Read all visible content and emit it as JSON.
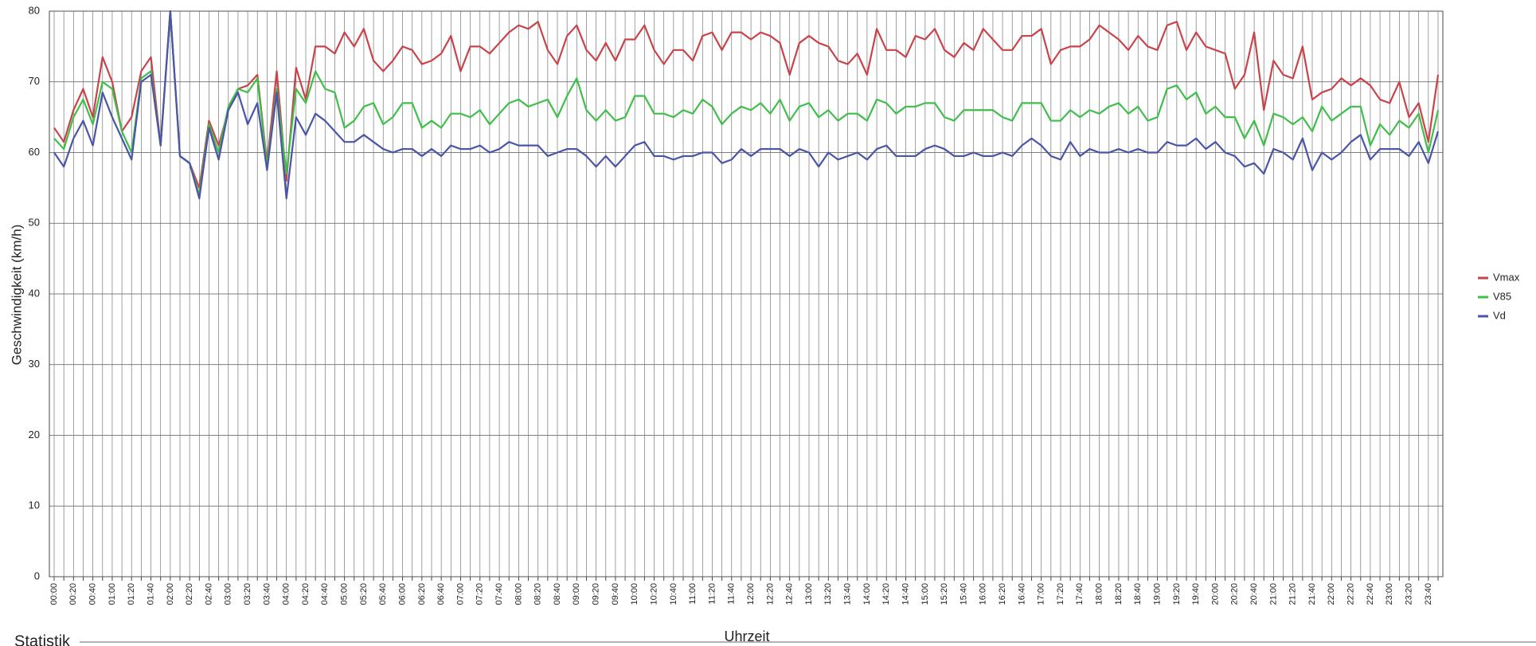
{
  "chart_data": {
    "type": "line",
    "y_label": "Geschwindigkeit (km/h)",
    "x_label": "Uhrzeit",
    "categories": [
      "00:00",
      null,
      "00:20",
      null,
      "00:40",
      null,
      "01:00",
      null,
      "01:20",
      null,
      "01:40",
      null,
      "02:00",
      null,
      "02:20",
      null,
      "02:40",
      null,
      "03:00",
      null,
      "03:20",
      null,
      "03:40",
      null,
      "04:00",
      null,
      "04:20",
      null,
      "04:40",
      null,
      "05:00",
      null,
      "05:20",
      null,
      "05:40",
      null,
      "06:00",
      null,
      "06:20",
      null,
      "06:40",
      null,
      "07:00",
      null,
      "07:20",
      null,
      "07:40",
      null,
      "08:00",
      null,
      "08:20",
      null,
      "08:40",
      null,
      "09:00",
      null,
      "09:20",
      null,
      "09:40",
      null,
      "10:00",
      null,
      "10:20",
      null,
      "10:40",
      null,
      "11:00",
      null,
      "11:20",
      null,
      "11:40",
      null,
      "12:00",
      null,
      "12:20",
      null,
      "12:40",
      null,
      "13:00",
      null,
      "13:20",
      null,
      "13:40",
      null,
      "14:00",
      null,
      "14:20",
      null,
      "14:40",
      null,
      "15:00",
      null,
      "15:20",
      null,
      "15:40",
      null,
      "16:00",
      null,
      "16:20",
      null,
      "16:40",
      null,
      "17:00",
      null,
      "17:20",
      null,
      "17:40",
      null,
      "18:00",
      null,
      "18:20",
      null,
      "18:40",
      null,
      "19:00",
      null,
      "19:20",
      null,
      "19:40",
      null,
      "20:00",
      null,
      "20:20",
      null,
      "20:40",
      null,
      "21:00",
      null,
      "21:20",
      null,
      "21:40",
      null,
      "22:00",
      null,
      "22:20",
      null,
      "22:40",
      null,
      "23:00",
      null,
      "23:20",
      null,
      "23:40",
      null
    ],
    "series": [
      {
        "name": "Vmax",
        "color": "#c8434a",
        "values": [
          63.5,
          61.5,
          66,
          69,
          65,
          73.5,
          70,
          63,
          65,
          71.5,
          73.5,
          61,
          80,
          59.5,
          58.5,
          55,
          64.5,
          61,
          66,
          69,
          69.5,
          71,
          58.5,
          71.5,
          56,
          72,
          67.5,
          75,
          75,
          74,
          77,
          75,
          77.5,
          73,
          71.5,
          73,
          75,
          74.5,
          72.5,
          73,
          74,
          76.5,
          71.5,
          75,
          75,
          74,
          75.5,
          77,
          78,
          77.5,
          78.5,
          74.5,
          72.5,
          76.5,
          78,
          74.5,
          73,
          75.5,
          73,
          76,
          76,
          78,
          74.5,
          72.5,
          74.5,
          74.5,
          73,
          76.5,
          77,
          74.5,
          77,
          77,
          76,
          77,
          76.5,
          75.5,
          71,
          75.5,
          76.5,
          75.5,
          75,
          73,
          72.5,
          74,
          71,
          77.5,
          74.5,
          74.5,
          73.5,
          76.5,
          76,
          77.5,
          74.5,
          73.5,
          75.5,
          74.5,
          77.5,
          76,
          74.5,
          74.5,
          76.5,
          76.5,
          77.5,
          72.5,
          74.5,
          75,
          75,
          76,
          78,
          77,
          76,
          74.5,
          76.5,
          75,
          74.5,
          78,
          78.5,
          74.5,
          77,
          75,
          74.5,
          74,
          69,
          71,
          77,
          66,
          73,
          71,
          70.5,
          75,
          67.5,
          68.5,
          69,
          70.5,
          69.5,
          70.5,
          69.5,
          67.5,
          67,
          70,
          65,
          67,
          61.5,
          71
        ]
      },
      {
        "name": "V85",
        "color": "#3fbf4a",
        "values": [
          62,
          60.5,
          65,
          67.5,
          64,
          70,
          69,
          63,
          60,
          70.5,
          71.5,
          61,
          80,
          59.5,
          58.5,
          54,
          64,
          60,
          66.5,
          69,
          68.5,
          70.5,
          58,
          69,
          57,
          69,
          67,
          71.5,
          69,
          68.5,
          63.5,
          64.5,
          66.5,
          67,
          64,
          65,
          67,
          67,
          63.5,
          64.5,
          63.5,
          65.5,
          65.5,
          65,
          66,
          64,
          65.5,
          67,
          67.5,
          66.5,
          67,
          67.5,
          65,
          68,
          70.5,
          66,
          64.5,
          66,
          64.5,
          65,
          68,
          68,
          65.5,
          65.5,
          65,
          66,
          65.5,
          67.5,
          66.5,
          64,
          65.5,
          66.5,
          66,
          67,
          65.5,
          67.5,
          64.5,
          66.5,
          67,
          65,
          66,
          64.5,
          65.5,
          65.5,
          64.5,
          67.5,
          67,
          65.5,
          66.5,
          66.5,
          67,
          67,
          65,
          64.5,
          66,
          66,
          66,
          66,
          65,
          64.5,
          67,
          67,
          67,
          64.5,
          64.5,
          66,
          65,
          66,
          65.5,
          66.5,
          67,
          65.5,
          66.5,
          64.5,
          65,
          69,
          69.5,
          67.5,
          68.5,
          65.5,
          66.5,
          65,
          65,
          62,
          64.5,
          61,
          65.5,
          65,
          64,
          65,
          63,
          66.5,
          64.5,
          65.5,
          66.5,
          66.5,
          61,
          64,
          62.5,
          64.5,
          63.5,
          65.5,
          60,
          66
        ]
      },
      {
        "name": "Vd",
        "color": "#4a55a8",
        "values": [
          60,
          58,
          62,
          64.5,
          61,
          68.5,
          65,
          62,
          59,
          70,
          71,
          61,
          80,
          59.5,
          58.5,
          53.5,
          63.5,
          59,
          66,
          68.5,
          64,
          67,
          57.5,
          68.5,
          53.5,
          65,
          62.5,
          65.5,
          64.5,
          63,
          61.5,
          61.5,
          62.5,
          61.5,
          60.5,
          60,
          60.5,
          60.5,
          59.5,
          60.5,
          59.5,
          61,
          60.5,
          60.5,
          61,
          60,
          60.5,
          61.5,
          61,
          61,
          61,
          59.5,
          60,
          60.5,
          60.5,
          59.5,
          58,
          59.5,
          58,
          59.5,
          61,
          61.5,
          59.5,
          59.5,
          59,
          59.5,
          59.5,
          60,
          60,
          58.5,
          59,
          60.5,
          59.5,
          60.5,
          60.5,
          60.5,
          59.5,
          60.5,
          60,
          58,
          60,
          59,
          59.5,
          60,
          59,
          60.5,
          61,
          59.5,
          59.5,
          59.5,
          60.5,
          61,
          60.5,
          59.5,
          59.5,
          60,
          59.5,
          59.5,
          60,
          59.5,
          61,
          62,
          61,
          59.5,
          59,
          61.5,
          59.5,
          60.5,
          60,
          60,
          60.5,
          60,
          60.5,
          60,
          60,
          61.5,
          61,
          61,
          62,
          60.5,
          61.5,
          60,
          59.5,
          58,
          58.5,
          57,
          60.5,
          60,
          59,
          62,
          57.5,
          60,
          59,
          60,
          61.5,
          62.5,
          59,
          60.5,
          60.5,
          60.5,
          59.5,
          61.5,
          58.5,
          63
        ]
      }
    ],
    "ylim": [
      0,
      80
    ],
    "yticks": [
      0,
      10,
      20,
      30,
      40,
      50,
      60,
      70,
      80
    ],
    "grid": true,
    "legend": "right"
  },
  "section_title": "Statistik"
}
